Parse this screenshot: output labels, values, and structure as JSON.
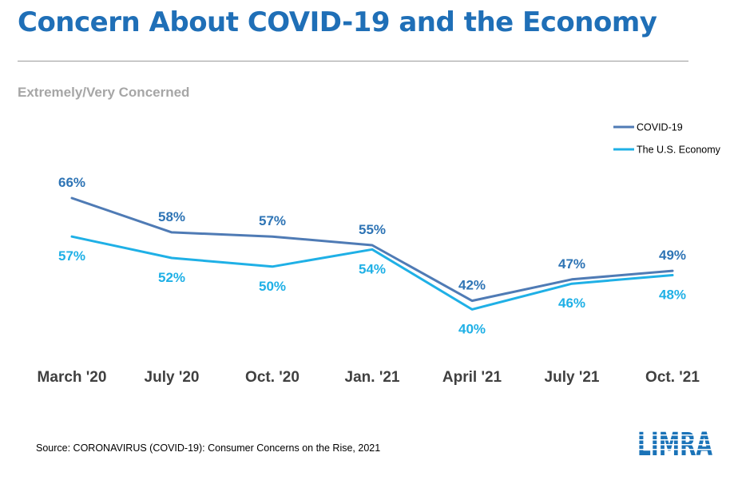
{
  "title": "Concern About COVID-19 and the Economy",
  "subtitle": "Extremely/Very Concerned",
  "source": "Source: CORONAVIRUS (COVID-19): Consumer Concerns on the Rise, 2021",
  "logo_text": "LIMRA",
  "colors": {
    "title": "#1f6fb7",
    "covid": "#4f7bb5",
    "economy": "#1fb0e6",
    "axis_text": "#404040",
    "logo": "#1a73b8"
  },
  "chart_data": {
    "type": "line",
    "categories": [
      "March '20",
      "July '20",
      "Oct. '20",
      "Jan. '21",
      "April '21",
      "July '21",
      "Oct. '21"
    ],
    "series": [
      {
        "name": "COVID-19",
        "values": [
          66,
          58,
          57,
          55,
          42,
          47,
          49
        ],
        "labels": [
          "66%",
          "58%",
          "57%",
          "55%",
          "42%",
          "47%",
          "49%"
        ],
        "color": "#4f7bb5"
      },
      {
        "name": "The U.S. Economy",
        "values": [
          57,
          52,
          50,
          54,
          40,
          46,
          48
        ],
        "labels": [
          "57%",
          "52%",
          "50%",
          "54%",
          "40%",
          "46%",
          "48%"
        ],
        "color": "#1fb0e6"
      }
    ],
    "title": "Concern About COVID-19 and the Economy",
    "ylabel": "",
    "xlabel": "",
    "legend": "top-right",
    "grid": false
  }
}
